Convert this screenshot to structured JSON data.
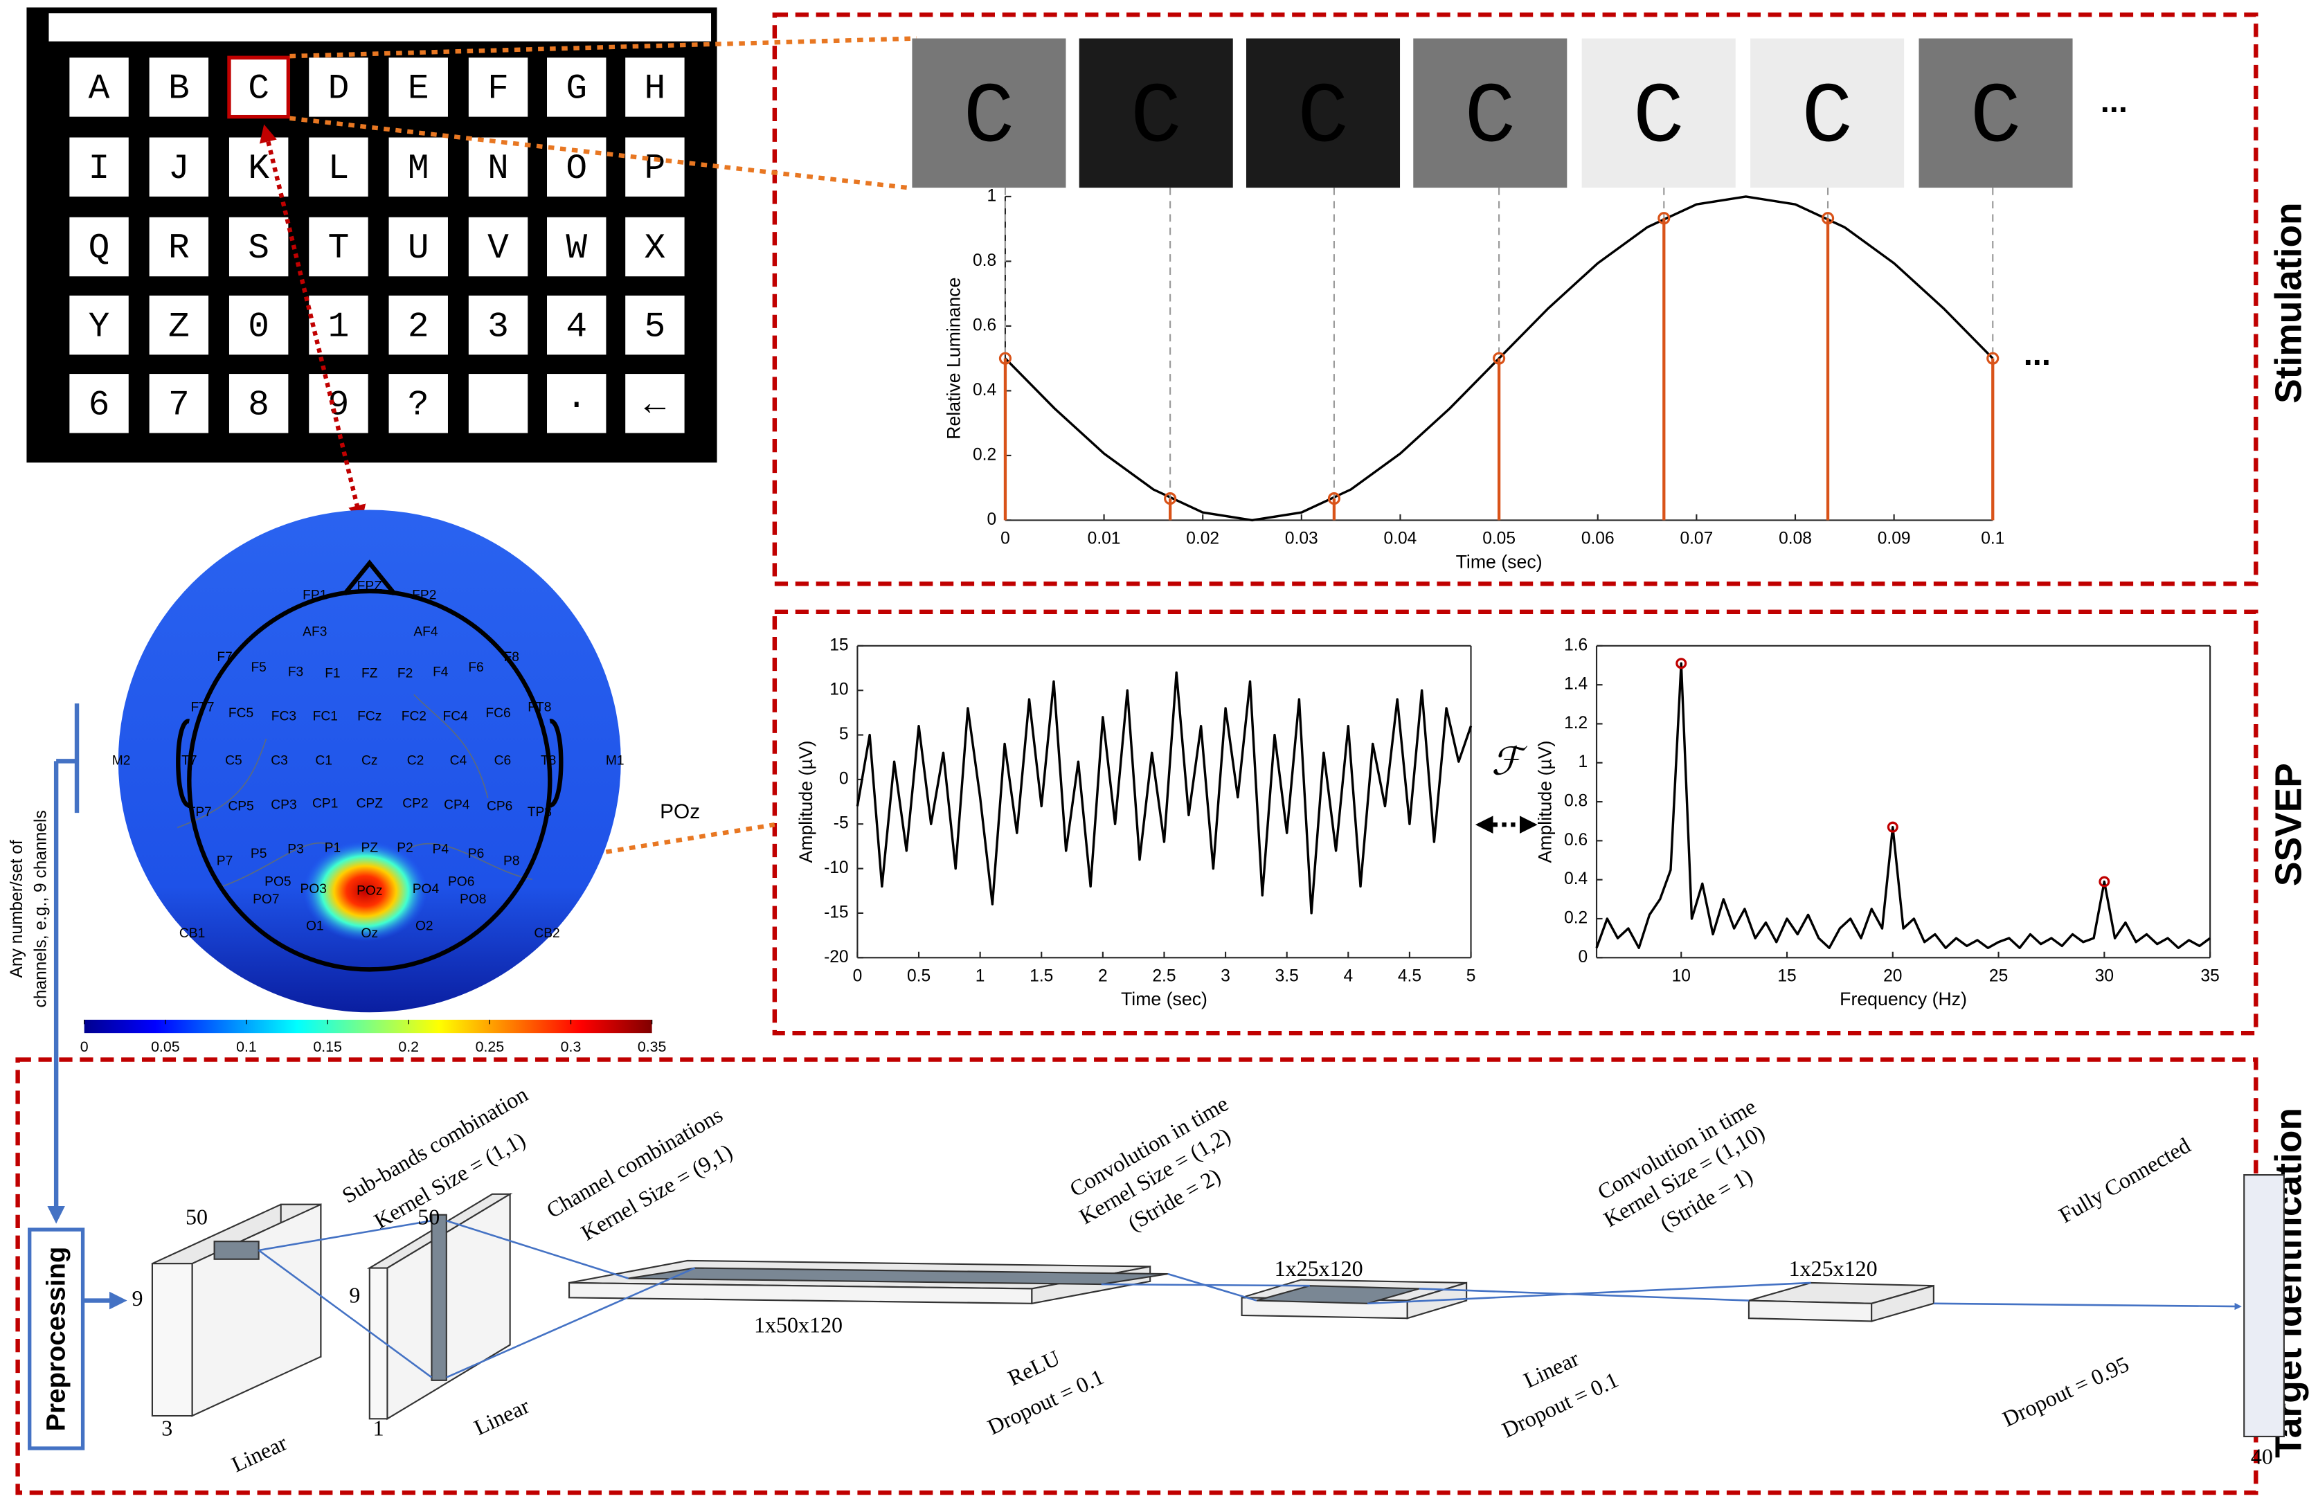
{
  "keyboard": {
    "rows": [
      [
        "A",
        "B",
        "C",
        "D",
        "E",
        "F",
        "G",
        "H"
      ],
      [
        "I",
        "J",
        "K",
        "L",
        "M",
        "N",
        "O",
        "P"
      ],
      [
        "Q",
        "R",
        "S",
        "T",
        "U",
        "V",
        "W",
        "X"
      ],
      [
        "Y",
        "Z",
        "0",
        "1",
        "2",
        "3",
        "4",
        "5"
      ],
      [
        "6",
        "7",
        "8",
        "9",
        "?",
        null,
        "·",
        "←"
      ]
    ],
    "selected": [
      0,
      2
    ]
  },
  "stimulation": {
    "title": "Stimulation",
    "frames": {
      "label": "C",
      "colors": [
        "#777777",
        "#1b1b1b",
        "#1b1b1b",
        "#777777",
        "#ececec",
        "#ececec",
        "#777777"
      ]
    },
    "ellipsis": "..."
  },
  "ssvep": {
    "title": "SSVEP",
    "transform_symbol": "ℱ"
  },
  "head": {
    "electrodes": [
      "FP1",
      "FPZ",
      "FP2",
      "AF3",
      "AF4",
      "F7",
      "F5",
      "F3",
      "F1",
      "FZ",
      "F2",
      "F4",
      "F6",
      "F8",
      "FT7",
      "FC5",
      "FC3",
      "FC1",
      "FCz",
      "FC2",
      "FC4",
      "FC6",
      "FT8",
      "M2",
      "T7",
      "C5",
      "C3",
      "C1",
      "Cz",
      "C2",
      "C4",
      "C6",
      "T8",
      "M1",
      "TP7",
      "CP5",
      "CP3",
      "CP1",
      "CPZ",
      "CP2",
      "CP4",
      "CP6",
      "TP8",
      "P7",
      "P5",
      "P3",
      "P1",
      "PZ",
      "P2",
      "P4",
      "P6",
      "P8",
      "PO7",
      "PO5",
      "PO3",
      "POz",
      "PO4",
      "PO6",
      "PO8",
      "CB1",
      "O1",
      "Oz",
      "O2",
      "CB2"
    ],
    "highlight_label": "POz",
    "channels_note": [
      "Any number/set of",
      "channels, e.g., 9 channels"
    ],
    "colorbar": {
      "lim": [
        0,
        0.35
      ],
      "ticks": [
        0,
        0.05,
        0.1,
        0.15,
        0.2,
        0.25,
        0.3,
        0.35
      ]
    }
  },
  "network": {
    "title": "Target Identification",
    "preprocessing": "Preprocessing",
    "labels": [
      "Sub-bands combination",
      "Kernel Size = (1,1)",
      "Channel combinations",
      "Kernel Size = (9,1)",
      "Convolution in time",
      "Kernel Size = (1,2)",
      "(Stride = 2)",
      "Convolution in time",
      "Kernel Size = (1,10)",
      "(Stride = 1)",
      "Fully Connected",
      "Linear",
      "Linear",
      "ReLU",
      "Dropout = 0.1",
      "Linear",
      "Dropout = 0.1",
      "Dropout = 0.95",
      "1x50x120",
      "1x25x120",
      "1x25x120"
    ],
    "dims": [
      50,
      9,
      3,
      50,
      9,
      1,
      40
    ]
  },
  "chart_data": [
    {
      "type": "line",
      "xlabel": "Time (sec)",
      "ylabel": "Relative Luminance",
      "xlim": [
        0,
        0.1
      ],
      "ylim": [
        0,
        1
      ],
      "xticks": [
        0,
        0.01,
        0.02,
        0.03,
        0.04,
        0.05,
        0.06,
        0.07,
        0.08,
        0.09,
        0.1
      ],
      "yticks": [
        0,
        0.2,
        0.4,
        0.6,
        0.8,
        1
      ],
      "series": [
        {
          "color": "#000000",
          "x": [
            0,
            0.005,
            0.01,
            0.015,
            0.02,
            0.025,
            0.03,
            0.035,
            0.04,
            0.045,
            0.05,
            0.055,
            0.06,
            0.065,
            0.07,
            0.075,
            0.08,
            0.085,
            0.09,
            0.095,
            0.1
          ],
          "values": [
            0.5,
            0.345,
            0.206,
            0.095,
            0.024,
            0,
            0.024,
            0.095,
            0.206,
            0.345,
            0.5,
            0.655,
            0.794,
            0.905,
            0.976,
            1,
            0.976,
            0.905,
            0.794,
            0.655,
            0.5
          ]
        },
        {
          "type": "stem",
          "color": "#d95319",
          "x": [
            0,
            0.0167,
            0.0333,
            0.05,
            0.0667,
            0.0833,
            0.1
          ],
          "values": [
            0.5,
            0.067,
            0.067,
            0.5,
            0.933,
            0.933,
            0.5
          ]
        }
      ]
    },
    {
      "type": "line",
      "xlabel": "Time (sec)",
      "ylabel": "Amplitude (µV)",
      "box": true,
      "xlim": [
        0,
        5
      ],
      "ylim": [
        -20,
        15
      ],
      "xticks": [
        0,
        0.5,
        1,
        1.5,
        2,
        2.5,
        3,
        3.5,
        4,
        4.5,
        5
      ],
      "yticks": [
        -20,
        -15,
        -10,
        -5,
        0,
        5,
        10,
        15
      ],
      "series": [
        {
          "color": "#000000",
          "x": [
            0,
            0.1,
            0.2,
            0.3,
            0.4,
            0.5,
            0.6,
            0.7,
            0.8,
            0.9,
            1,
            1.1,
            1.2,
            1.3,
            1.4,
            1.5,
            1.6,
            1.7,
            1.8,
            1.9,
            2,
            2.1,
            2.2,
            2.3,
            2.4,
            2.5,
            2.6,
            2.7,
            2.8,
            2.9,
            3,
            3.1,
            3.2,
            3.3,
            3.4,
            3.5,
            3.6,
            3.7,
            3.8,
            3.9,
            4,
            4.1,
            4.2,
            4.3,
            4.4,
            4.5,
            4.6,
            4.7,
            4.8,
            4.9,
            5
          ],
          "values": [
            -3,
            5,
            -12,
            2,
            -8,
            6,
            -5,
            3,
            -10,
            8,
            -2,
            -14,
            4,
            -6,
            9,
            -3,
            11,
            -8,
            2,
            -12,
            7,
            -5,
            10,
            -9,
            3,
            -7,
            12,
            -4,
            6,
            -10,
            8,
            -2,
            11,
            -13,
            5,
            -6,
            9,
            -15,
            3,
            -8,
            6,
            -12,
            4,
            -3,
            9,
            -5,
            10,
            -7,
            8,
            2,
            6
          ]
        }
      ]
    },
    {
      "type": "line",
      "xlabel": "Frequency (Hz)",
      "ylabel": "Amplitude (µV)",
      "box": true,
      "xlim": [
        6,
        35
      ],
      "ylim": [
        0,
        1.6
      ],
      "xticks": [
        10,
        15,
        20,
        25,
        30,
        35
      ],
      "yticks": [
        0,
        0.2,
        0.4,
        0.6,
        0.8,
        1,
        1.2,
        1.4,
        1.6
      ],
      "series": [
        {
          "color": "#000000",
          "x": [
            6,
            6.5,
            7,
            7.5,
            8,
            8.5,
            9,
            9.5,
            10,
            10.5,
            11,
            11.5,
            12,
            12.5,
            13,
            13.5,
            14,
            14.5,
            15,
            15.5,
            16,
            16.5,
            17,
            17.5,
            18,
            18.5,
            19,
            19.5,
            20,
            20.5,
            21,
            21.5,
            22,
            22.5,
            23,
            23.5,
            24,
            24.5,
            25,
            25.5,
            26,
            26.5,
            27,
            27.5,
            28,
            28.5,
            29,
            29.5,
            30,
            30.5,
            31,
            31.5,
            32,
            32.5,
            33,
            33.5,
            34,
            34.5,
            35
          ],
          "values": [
            0.05,
            0.2,
            0.1,
            0.15,
            0.05,
            0.22,
            0.3,
            0.45,
            1.51,
            0.2,
            0.38,
            0.12,
            0.3,
            0.15,
            0.25,
            0.1,
            0.18,
            0.08,
            0.2,
            0.12,
            0.22,
            0.1,
            0.05,
            0.15,
            0.2,
            0.1,
            0.25,
            0.15,
            0.67,
            0.15,
            0.2,
            0.08,
            0.12,
            0.05,
            0.1,
            0.06,
            0.09,
            0.05,
            0.08,
            0.1,
            0.05,
            0.12,
            0.07,
            0.1,
            0.06,
            0.12,
            0.08,
            0.1,
            0.39,
            0.1,
            0.18,
            0.08,
            0.12,
            0.07,
            0.1,
            0.05,
            0.09,
            0.06,
            0.1
          ]
        },
        {
          "type": "scatter",
          "color": "#c00000",
          "x": [
            10,
            20,
            30
          ],
          "values": [
            1.51,
            0.67,
            0.39
          ]
        }
      ]
    }
  ]
}
